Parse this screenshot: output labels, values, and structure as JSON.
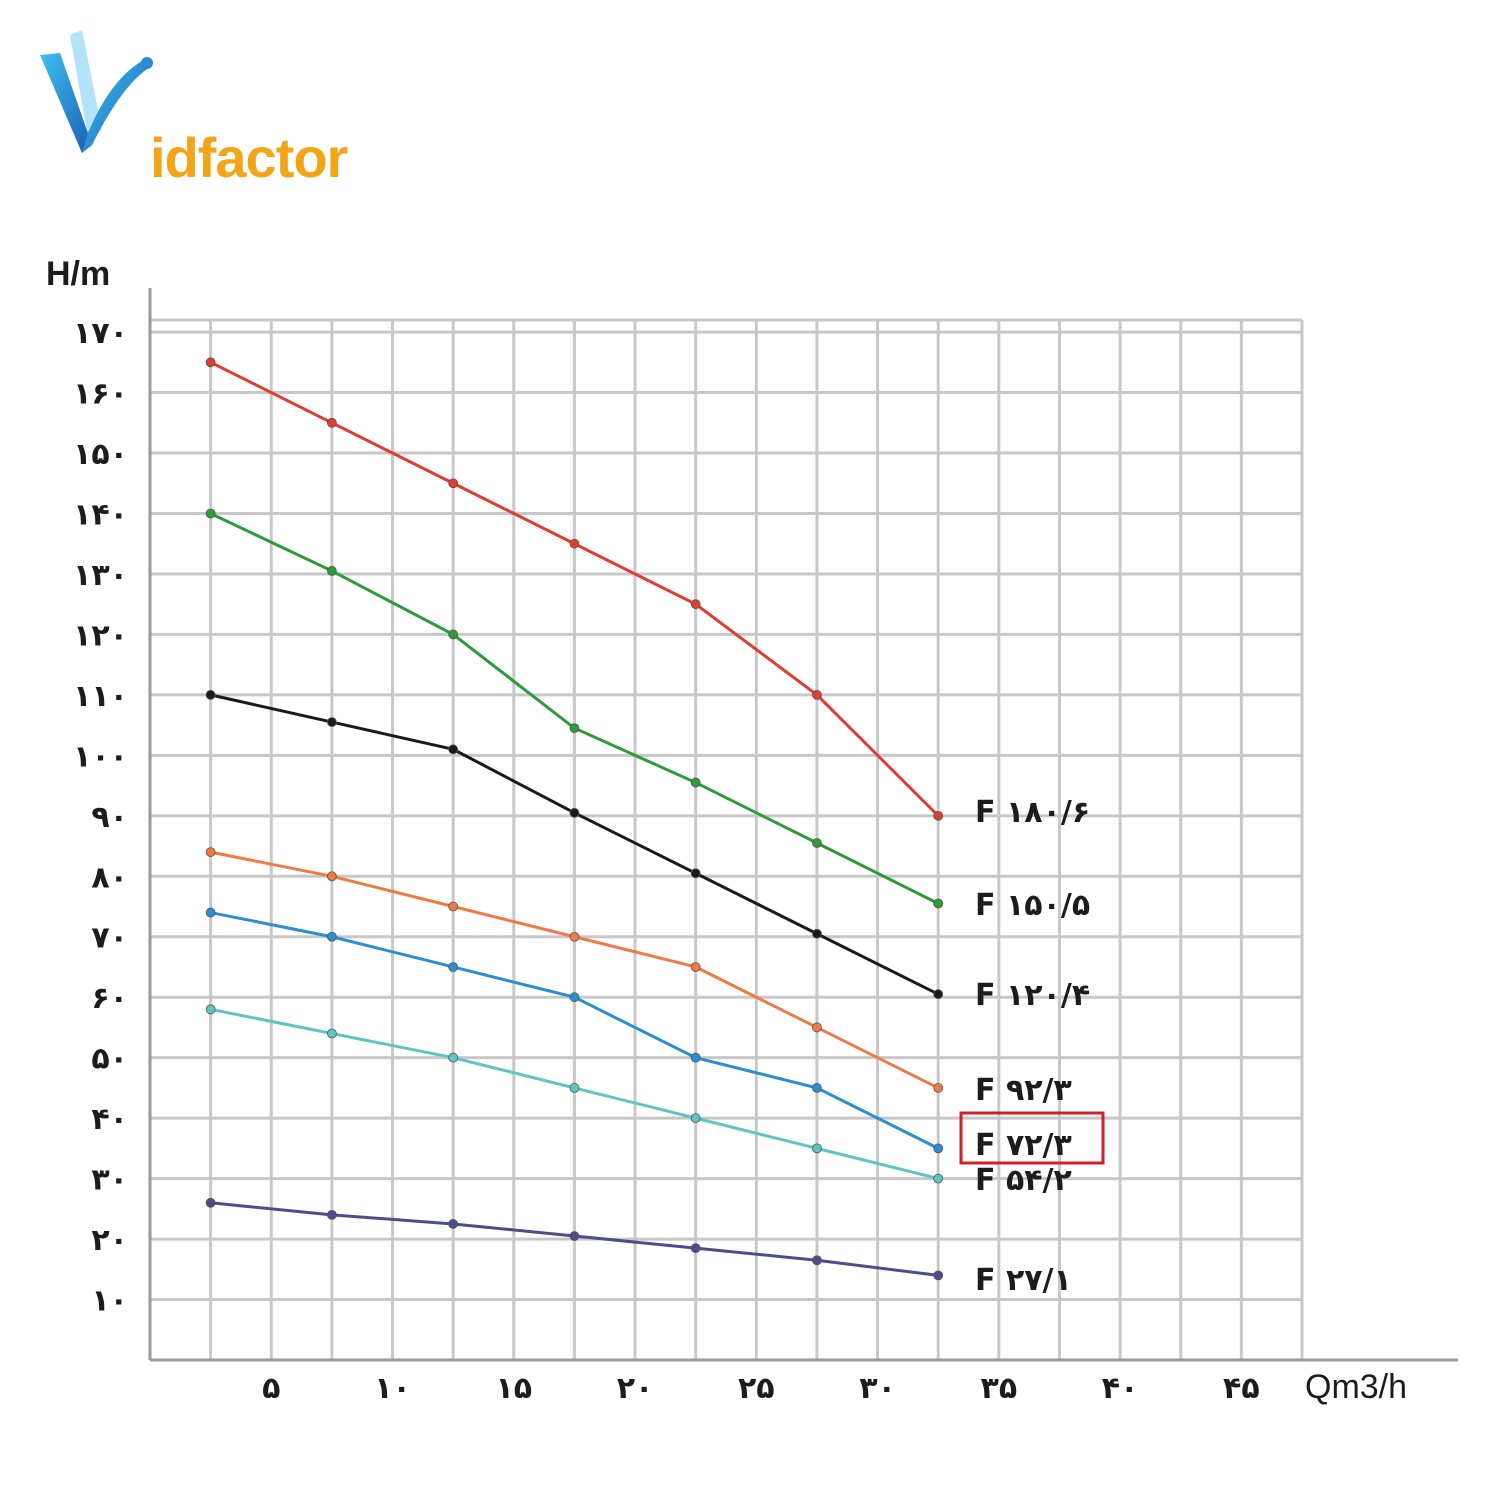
{
  "logo": {
    "text": "idfactor",
    "mark": "V"
  },
  "chart_data": {
    "type": "line",
    "title": "",
    "xlabel": "Qm3/h",
    "ylabel": "H/m",
    "xlim": [
      0,
      47.5
    ],
    "ylim": [
      0,
      172
    ],
    "grid": true,
    "x_ticks": [
      {
        "value": 5,
        "label": "۵"
      },
      {
        "value": 10,
        "label": "۱۰"
      },
      {
        "value": 15,
        "label": "۱۵"
      },
      {
        "value": 20,
        "label": "۲۰"
      },
      {
        "value": 25,
        "label": "۲۵"
      },
      {
        "value": 30,
        "label": "۳۰"
      },
      {
        "value": 35,
        "label": "۳۵"
      },
      {
        "value": 40,
        "label": "۴۰"
      },
      {
        "value": 45,
        "label": "۴۵"
      }
    ],
    "y_ticks": [
      {
        "value": 10,
        "label": "۱۰"
      },
      {
        "value": 20,
        "label": "۲۰"
      },
      {
        "value": 30,
        "label": "۳۰"
      },
      {
        "value": 40,
        "label": "۴۰"
      },
      {
        "value": 50,
        "label": "۵۰"
      },
      {
        "value": 60,
        "label": "۶۰"
      },
      {
        "value": 70,
        "label": "۷۰"
      },
      {
        "value": 80,
        "label": "۸۰"
      },
      {
        "value": 90,
        "label": "۹۰"
      },
      {
        "value": 100,
        "label": "۱۰۰"
      },
      {
        "value": 110,
        "label": "۱۱۰"
      },
      {
        "value": 120,
        "label": "۱۲۰"
      },
      {
        "value": 130,
        "label": "۱۳۰"
      },
      {
        "value": 140,
        "label": "۱۴۰"
      },
      {
        "value": 150,
        "label": "۱۵۰"
      },
      {
        "value": 160,
        "label": "۱۶۰"
      },
      {
        "value": 170,
        "label": "۱۷۰"
      }
    ],
    "x": [
      2.5,
      7.5,
      12.5,
      17.5,
      22.5,
      27.5,
      32.5
    ],
    "series": [
      {
        "name": "F ۱۸۰/۶",
        "color": "#e03c2f",
        "values": [
          165,
          155,
          145,
          135,
          125,
          110,
          90
        ]
      },
      {
        "name": "F ۱۵۰/۵",
        "color": "#2e9a3a",
        "values": [
          140,
          130.5,
          120,
          104.5,
          95.5,
          85.5,
          75.5
        ]
      },
      {
        "name": "F ۱۲۰/۴",
        "color": "#1a1a1a",
        "values": [
          110,
          105.5,
          101,
          90.5,
          80.5,
          70.5,
          60.5
        ]
      },
      {
        "name": "F ۹۲/۳",
        "color": "#f07a45",
        "values": [
          84,
          80,
          75,
          70,
          65,
          55,
          45
        ]
      },
      {
        "name": "F ۷۲/۳",
        "color": "#2b8ed1",
        "values": [
          74,
          70,
          65,
          60,
          50,
          45,
          35
        ]
      },
      {
        "name": "F ۵۴/۲",
        "color": "#5fc4c3",
        "values": [
          58,
          54,
          50,
          45,
          40,
          35,
          30
        ]
      },
      {
        "name": "F ۲۷/۱",
        "color": "#4d4c8d",
        "values": [
          26,
          24,
          22.5,
          20.5,
          18.5,
          16.5,
          14
        ]
      }
    ],
    "highlighted_series": "F ۷۲/۳",
    "highlight_color": "#d32027"
  }
}
